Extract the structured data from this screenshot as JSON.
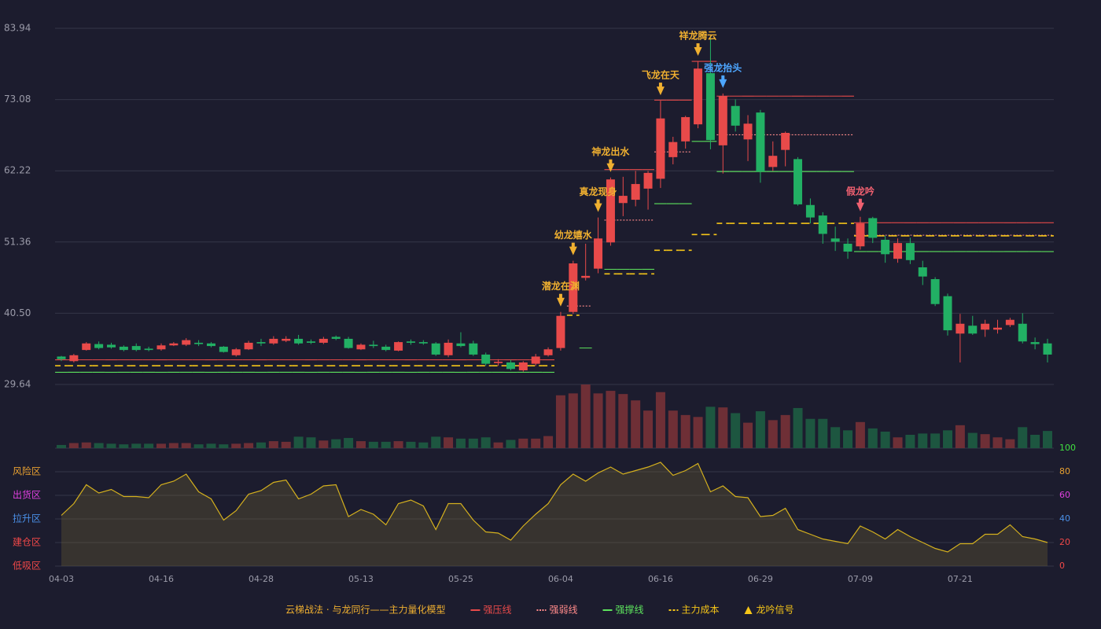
{
  "chart_data": {
    "type": "candlestick",
    "categories": [
      "04-03",
      null,
      null,
      null,
      null,
      null,
      null,
      null,
      "04-16",
      null,
      null,
      null,
      null,
      null,
      null,
      null,
      "04-28",
      null,
      null,
      null,
      null,
      null,
      null,
      null,
      "05-13",
      null,
      null,
      null,
      null,
      null,
      null,
      null,
      "05-25",
      null,
      null,
      null,
      null,
      null,
      null,
      null,
      "06-04",
      null,
      null,
      null,
      null,
      null,
      null,
      null,
      "06-16",
      null,
      null,
      null,
      null,
      null,
      null,
      null,
      "06-29",
      null,
      null,
      null,
      null,
      null,
      null,
      null,
      "07-09",
      null,
      null,
      null,
      null,
      null,
      null,
      null,
      "07-21",
      null,
      null,
      null,
      null,
      null,
      null,
      null
    ],
    "open": [
      33.9,
      33.2,
      34.9,
      35.8,
      35.7,
      35.4,
      35.5,
      35.1,
      35.0,
      35.6,
      35.7,
      36.0,
      35.9,
      35.4,
      34.1,
      35.0,
      36.1,
      35.9,
      36.3,
      36.6,
      36.2,
      36.0,
      36.9,
      36.6,
      35.0,
      35.7,
      35.4,
      34.8,
      36.2,
      36.1,
      35.9,
      34.1,
      35.9,
      35.9,
      34.2,
      32.9,
      33.0,
      31.8,
      32.8,
      34.1,
      35.2,
      40.7,
      45.9,
      47.3,
      51.3,
      57.3,
      57.8,
      59.5,
      61.0,
      64.3,
      66.7,
      69.3,
      77.1,
      66.1,
      72.1,
      67.0,
      71.1,
      62.8,
      65.4,
      64.0,
      57.0,
      55.4,
      51.9,
      51.1,
      50.7,
      55.0,
      51.7,
      48.8,
      51.2,
      47.5,
      45.7,
      43.1,
      37.4,
      38.6,
      38.0,
      38.0,
      38.7,
      38.9,
      36.1,
      35.9
    ],
    "high": [
      34.0,
      34.3,
      36.1,
      36.2,
      36.0,
      35.6,
      35.9,
      35.4,
      35.9,
      36.1,
      36.7,
      36.4,
      36.1,
      35.5,
      35.2,
      36.3,
      36.6,
      37.0,
      37.0,
      37.2,
      36.5,
      36.9,
      37.1,
      36.9,
      35.9,
      36.3,
      35.7,
      36.2,
      36.5,
      36.4,
      36.1,
      36.5,
      37.6,
      36.3,
      34.5,
      33.5,
      33.4,
      33.2,
      34.3,
      35.3,
      40.7,
      48.5,
      51.1,
      55.1,
      61.2,
      61.3,
      62.2,
      62.2,
      72.9,
      67.4,
      70.6,
      78.9,
      82.5,
      74.0,
      73.1,
      70.7,
      71.5,
      66.7,
      68.2,
      64.3,
      58.0,
      55.9,
      53.7,
      51.9,
      55.2,
      55.2,
      52.3,
      51.9,
      52.0,
      48.5,
      46.0,
      43.5,
      40.4,
      40.1,
      39.5,
      39.5,
      39.8,
      40.5,
      36.8,
      36.6
    ],
    "low": [
      33.2,
      33.0,
      34.8,
      35.0,
      35.1,
      34.7,
      34.7,
      34.7,
      34.8,
      35.5,
      35.5,
      35.5,
      35.3,
      34.5,
      33.9,
      34.9,
      35.5,
      35.7,
      36.1,
      35.7,
      35.8,
      35.8,
      36.4,
      35.1,
      34.9,
      35.2,
      34.7,
      34.7,
      35.7,
      35.7,
      34.0,
      33.8,
      35.3,
      34.0,
      32.5,
      32.5,
      31.8,
      31.6,
      32.5,
      33.9,
      34.8,
      40.4,
      45.5,
      46.6,
      50.8,
      55.3,
      56.8,
      56.3,
      59.6,
      63.2,
      65.6,
      68.7,
      65.5,
      61.8,
      68.2,
      63.7,
      60.4,
      62.2,
      62.9,
      56.9,
      54.2,
      51.1,
      50.0,
      48.8,
      50.2,
      51.2,
      48.2,
      48.2,
      48.0,
      44.8,
      41.6,
      37.1,
      33.0,
      37.2,
      36.9,
      37.4,
      38.4,
      35.9,
      35.0,
      33.0
    ],
    "close": [
      33.5,
      34.1,
      35.9,
      35.2,
      35.3,
      34.9,
      34.9,
      34.9,
      35.6,
      35.9,
      36.4,
      35.8,
      35.5,
      34.6,
      35.0,
      36.0,
      35.9,
      36.6,
      36.6,
      35.9,
      36.0,
      36.6,
      36.6,
      35.2,
      35.7,
      35.5,
      34.9,
      36.1,
      36.0,
      35.9,
      34.2,
      36.0,
      35.5,
      34.2,
      32.8,
      33.1,
      32.0,
      33.0,
      33.9,
      35.0,
      40.1,
      48.1,
      46.2,
      51.9,
      60.9,
      58.4,
      60.2,
      61.9,
      70.2,
      66.6,
      70.4,
      77.8,
      66.9,
      73.6,
      69.1,
      69.4,
      62.1,
      64.5,
      68.0,
      57.1,
      55.1,
      52.6,
      51.4,
      49.9,
      54.2,
      52.0,
      49.5,
      51.2,
      48.6,
      46.1,
      41.9,
      37.9,
      38.9,
      37.4,
      38.9,
      38.3,
      39.5,
      36.2,
      35.8,
      34.2
    ],
    "up_color": "#e84a4a",
    "down_color": "#22b064",
    "ylim": [
      29.64,
      83.94
    ],
    "yticks": [
      29.64,
      {
        "value": 40.5,
        "label": "40.50"
      },
      51.36,
      62.22,
      73.08,
      83.94
    ],
    "grid": true,
    "levels": [
      {
        "name": "强压线",
        "color": "#e84a4a",
        "style": "solid",
        "values": [
          33.4,
          33.4,
          33.4,
          33.4,
          33.4,
          33.4,
          33.4,
          33.4,
          33.4,
          33.4,
          33.4,
          33.4,
          33.4,
          33.4,
          33.4,
          33.4,
          33.4,
          33.4,
          33.4,
          33.4,
          33.4,
          33.4,
          33.4,
          33.4,
          33.4,
          33.4,
          33.4,
          33.4,
          33.4,
          33.4,
          33.4,
          33.4,
          33.4,
          33.4,
          33.4,
          33.4,
          33.4,
          33.4,
          33.4,
          33.4,
          null,
          null,
          null,
          null,
          62.4,
          62.4,
          62.4,
          62.4,
          73.0,
          73.0,
          73.0,
          78.9,
          78.9,
          73.6,
          73.6,
          73.6,
          73.6,
          73.6,
          73.6,
          73.6,
          73.6,
          73.6,
          73.6,
          73.6,
          54.3,
          54.3,
          54.3,
          54.3,
          54.3,
          54.3,
          54.3,
          54.3,
          54.3,
          54.3,
          54.3,
          54.3,
          54.3,
          54.3,
          54.3,
          54.3
        ]
      },
      {
        "name": "强弱线",
        "color": "#ff8a8a",
        "style": "dotted",
        "values": [
          null,
          null,
          null,
          null,
          null,
          null,
          null,
          null,
          null,
          null,
          null,
          null,
          null,
          null,
          null,
          null,
          null,
          null,
          null,
          null,
          null,
          null,
          null,
          null,
          null,
          null,
          null,
          null,
          null,
          null,
          null,
          null,
          null,
          null,
          null,
          null,
          null,
          null,
          null,
          null,
          null,
          41.6,
          41.6,
          null,
          54.7,
          54.7,
          54.7,
          54.7,
          65.1,
          65.1,
          65.1,
          null,
          null,
          67.7,
          67.7,
          67.7,
          67.7,
          67.7,
          67.7,
          67.7,
          67.7,
          67.7,
          67.7,
          67.7,
          52.4,
          52.4,
          52.4,
          52.4,
          52.4,
          52.4,
          52.4,
          52.4,
          52.4,
          52.4,
          52.4,
          52.4,
          52.4,
          52.4,
          52.4,
          52.4
        ]
      },
      {
        "name": "强撑线",
        "color": "#5de35d",
        "style": "solid",
        "values": [
          31.5,
          31.5,
          31.5,
          31.5,
          31.5,
          31.5,
          31.5,
          31.5,
          31.5,
          31.5,
          31.5,
          31.5,
          31.5,
          31.5,
          31.5,
          31.5,
          31.5,
          31.5,
          31.5,
          31.5,
          31.5,
          31.5,
          31.5,
          31.5,
          31.5,
          31.5,
          31.5,
          31.5,
          31.5,
          31.5,
          31.5,
          31.5,
          31.5,
          31.5,
          31.5,
          31.5,
          31.5,
          31.5,
          31.5,
          31.5,
          null,
          null,
          35.2,
          null,
          47.2,
          47.2,
          47.2,
          47.2,
          57.2,
          57.2,
          57.2,
          66.7,
          66.7,
          62.1,
          62.1,
          62.1,
          62.1,
          62.1,
          62.1,
          62.1,
          62.1,
          62.1,
          62.1,
          62.1,
          49.9,
          49.9,
          49.9,
          49.9,
          49.9,
          49.9,
          49.9,
          49.9,
          49.9,
          49.9,
          49.9,
          49.9,
          49.9,
          49.9,
          49.9,
          49.9
        ]
      },
      {
        "name": "主力成本",
        "color": "#f5c518",
        "style": "dashed",
        "values": [
          32.5,
          32.5,
          32.5,
          32.5,
          32.5,
          32.5,
          32.5,
          32.5,
          32.5,
          32.5,
          32.5,
          32.5,
          32.5,
          32.5,
          32.5,
          32.5,
          32.5,
          32.5,
          32.5,
          32.5,
          32.5,
          32.5,
          32.5,
          32.5,
          32.5,
          32.5,
          32.5,
          32.5,
          32.5,
          32.5,
          32.5,
          32.5,
          32.5,
          32.5,
          32.5,
          32.5,
          32.5,
          32.5,
          32.5,
          32.5,
          null,
          40.2,
          null,
          null,
          46.5,
          46.5,
          46.5,
          46.5,
          50.1,
          50.1,
          50.1,
          52.5,
          52.5,
          54.2,
          54.2,
          54.2,
          54.2,
          54.2,
          54.2,
          54.2,
          54.2,
          54.2,
          54.2,
          54.2,
          52.3,
          52.3,
          52.3,
          52.3,
          52.3,
          52.3,
          52.3,
          52.3,
          52.3,
          52.3,
          52.3,
          52.3,
          52.3,
          52.3,
          52.3,
          52.3
        ]
      }
    ],
    "signals": [
      {
        "label": "潜龙在渊",
        "at": 40,
        "color": "#f0b030"
      },
      {
        "label": "幼龙嬉水",
        "at": 41,
        "color": "#f0b030"
      },
      {
        "label": "真龙现身",
        "at": 43,
        "color": "#f0b030"
      },
      {
        "label": "神龙出水",
        "at": 44,
        "color": "#f0b030"
      },
      {
        "label": "飞龙在天",
        "at": 48,
        "color": "#f0b030"
      },
      {
        "label": "祥龙腾云",
        "at": 51,
        "color": "#f0b030"
      },
      {
        "label": "强龙抬头",
        "at": 53,
        "color": "#4da6ff"
      },
      {
        "label": "假龙吟",
        "at": 64,
        "color": "#f06070"
      }
    ],
    "signal_legend": "龙吟信号",
    "signal_legend_color": "#f5c518",
    "legend_title": "云梯战法 · 与龙同行——主力量化模型",
    "volume": {
      "ylim": [
        0,
        100
      ],
      "up_color": "#6e2f36",
      "down_color": "#1d5640",
      "values": [
        5,
        8,
        9,
        8,
        7,
        6,
        7,
        7,
        7,
        8,
        8,
        6,
        7,
        6,
        7,
        8,
        9,
        11,
        10,
        18,
        17,
        12,
        14,
        16,
        11,
        10,
        10,
        11,
        10,
        9,
        18,
        17,
        15,
        15,
        17,
        9,
        13,
        15,
        15,
        19,
        83,
        86,
        100,
        86,
        90,
        85,
        75,
        59,
        88,
        59,
        52,
        49,
        65,
        64,
        55,
        40,
        58,
        44,
        52,
        63,
        46,
        46,
        33,
        28,
        41,
        31,
        26,
        17,
        21,
        23,
        23,
        28,
        36,
        24,
        22,
        17,
        14,
        33,
        21,
        27
      ]
    },
    "oscillator": {
      "ylim": [
        0,
        100
      ],
      "yticks": [
        0,
        20,
        40,
        60,
        80,
        100
      ],
      "ytick_colors": [
        "#f04848",
        "#f04848",
        "#4a90e8",
        "#e040e0",
        "#e8a030",
        "#40e040"
      ],
      "color": "#d4b01e",
      "values": [
        43,
        53,
        69,
        62,
        65,
        59,
        59,
        58,
        69,
        72,
        78,
        63,
        57,
        39,
        47,
        61,
        64,
        71,
        73,
        57,
        61,
        68,
        69,
        42,
        48,
        44,
        35,
        53,
        56,
        51,
        31,
        53,
        53,
        39,
        29,
        28,
        22,
        34,
        44,
        53,
        69,
        78,
        72,
        79,
        84,
        78,
        81,
        84,
        88,
        77,
        81,
        87,
        63,
        68,
        59,
        58,
        42,
        43,
        49,
        31,
        27,
        23,
        21,
        19,
        34,
        29,
        23,
        31,
        25,
        20,
        15,
        12,
        19,
        19,
        27,
        27,
        35,
        25,
        23,
        20
      ],
      "zones": [
        {
          "label": "低吸区",
          "value": 0,
          "color": "#f04848"
        },
        {
          "label": "建仓区",
          "value": 20,
          "color": "#f04848"
        },
        {
          "label": "拉升区",
          "value": 40,
          "color": "#4a90e8"
        },
        {
          "label": "出货区",
          "value": 60,
          "color": "#e040e0"
        },
        {
          "label": "风险区",
          "value": 80,
          "color": "#e8a030"
        }
      ]
    }
  }
}
